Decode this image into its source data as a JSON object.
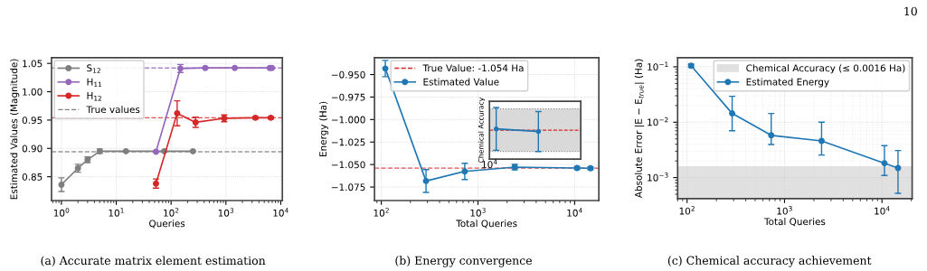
{
  "chart_data": [
    {
      "type": "line",
      "xlabel": "Queries",
      "ylabel": "Estimated Values (Magnitude)",
      "log": "x",
      "grid": true,
      "legend": "top left",
      "marker": "circle",
      "line_style": "solid",
      "xlim": [
        0.66,
        10700
      ],
      "ylim": [
        0.808,
        1.06
      ],
      "xticks": [
        {
          "value": 1,
          "label": "10$^{0}$"
        },
        {
          "value": 10,
          "label": "10$^{1}$"
        },
        {
          "value": 100,
          "label": "10$^{2}$"
        },
        {
          "value": 1000,
          "label": "10$^{3}$"
        },
        {
          "value": 10000,
          "label": "10$^{4}$"
        }
      ],
      "yticks": [
        {
          "value": 0.85,
          "label": "0.85"
        },
        {
          "value": 0.9,
          "label": "0.90"
        },
        {
          "value": 0.95,
          "label": "0.95"
        },
        {
          "value": 1.0,
          "label": "1.00"
        },
        {
          "value": 1.05,
          "label": "1.05"
        }
      ],
      "series": [
        {
          "name": "S$_{12}$",
          "color": "#7f7f7f",
          "x": [
            1,
            2,
            3,
            5,
            15,
            75,
            250
          ],
          "values": [
            0.836,
            0.865,
            0.88,
            0.895,
            0.895,
            0.895,
            0.895
          ],
          "errors": [
            0.012,
            0.007,
            0.005,
            0.004,
            0.001,
            null,
            null
          ]
        },
        {
          "name": "H$_{11}$",
          "color": "#9467bd",
          "x": [
            53,
            148,
            420,
            1450,
            6300,
            6900
          ],
          "values": [
            0.894,
            1.041,
            1.042,
            1.042,
            1.042,
            1.042
          ],
          "errors": [
            null,
            0.007,
            0.001,
            null,
            null,
            0.001
          ]
        },
        {
          "name": "H$_{12}$",
          "color": "#d62728",
          "x": [
            53,
            129,
            280,
            930,
            3450,
            6600
          ],
          "values": [
            0.838,
            0.962,
            0.946,
            0.953,
            0.954,
            0.954
          ],
          "errors": [
            0.008,
            0.022,
            0.009,
            0.006,
            0.002,
            0.002
          ]
        }
      ],
      "ref_lines": [
        {
          "axis": "y",
          "value": 0.894,
          "label": "True values",
          "color": "#7f7f7f",
          "line_style": "dashed"
        },
        {
          "axis": "y",
          "value": 1.042,
          "color": "#9467bd",
          "line_style": "dashed"
        },
        {
          "axis": "y",
          "value": 0.954,
          "color": "#d62728",
          "line_style": "dashed"
        }
      ],
      "annotations": [
        "(a) Accurate matrix element estimation"
      ]
    },
    {
      "type": "line",
      "xlabel": "Total Queries",
      "ylabel": "Energy (Ha)",
      "log": "x",
      "grid": true,
      "legend": "top left",
      "marker": "circle",
      "line_style": "solid",
      "xlim": [
        85,
        17800
      ],
      "ylim": [
        -1.09,
        -0.9313
      ],
      "xticks": [
        {
          "value": 100,
          "label": "10$^{2}$"
        },
        {
          "value": 1000,
          "label": "10$^{3}$"
        },
        {
          "value": 10000,
          "label": "10$^{4}$"
        }
      ],
      "yticks": [
        {
          "value": -1.075,
          "label": "−1.075"
        },
        {
          "value": -1.05,
          "label": "−1.050"
        },
        {
          "value": -1.025,
          "label": "−1.025"
        },
        {
          "value": -1.0,
          "label": "−1.000"
        },
        {
          "value": -0.975,
          "label": "−0.975"
        },
        {
          "value": -0.95,
          "label": "−0.950"
        }
      ],
      "series": [
        {
          "name": "Estimated Value",
          "color": "#1f77b4",
          "x": [
            110,
            290,
            730,
            2400,
            10600,
            14600
          ],
          "values": [
            -0.9433,
            -1.0683,
            -1.0576,
            -1.0529,
            -1.0539,
            -1.0541
          ],
          "errors": [
            0.009,
            0.0127,
            0.009,
            0.003,
            0.0016,
            0.0015
          ]
        }
      ],
      "ref_lines": [
        {
          "axis": "y",
          "value": -1.054,
          "label": "True Value: -1.054 Ha",
          "color": "#d62728",
          "line_style": "dashed"
        }
      ],
      "annotations": [
        "(b) Energy convergence"
      ]
    },
    {
      "type": "other",
      "annotations": [
        "Chemical Accuracy",
        "10$^{4}$"
      ]
    },
    {
      "type": "line",
      "xlabel": "Total Queries",
      "ylabel": "Absolute Error |E − E$_{true}$| (Ha)",
      "log": "xy",
      "grid": true,
      "legend": "top right",
      "marker": "circle",
      "line_style": "solid",
      "xlim": [
        80,
        20400
      ],
      "ylim": [
        0.000417,
        0.146
      ],
      "xticks": [
        {
          "value": 100,
          "label": "10$^{2}$"
        },
        {
          "value": 1000,
          "label": "10$^{3}$"
        },
        {
          "value": 10000,
          "label": "10$^{4}$"
        }
      ],
      "yticks": [
        {
          "value": 0.001,
          "label": "10$^{−3}$"
        },
        {
          "value": 0.01,
          "label": "10$^{−2}$"
        },
        {
          "value": 0.1,
          "label": "10$^{−1}$"
        }
      ],
      "series": [
        {
          "name": "Estimated Energy",
          "color": "#1f77b4",
          "x": [
            110,
            290,
            730,
            2400,
            10600,
            14600
          ],
          "values": [
            0.105,
            0.0144,
            0.0058,
            0.0046,
            0.00182,
            0.00149
          ],
          "errors": [
            [
              0.098,
              0.112
            ],
            [
              0.007,
              0.0293
            ],
            [
              0.00396,
              0.0144
            ],
            [
              0.00256,
              0.01
            ],
            [
              0.00109,
              0.00377
            ],
            [
              0.00052,
              0.00308
            ]
          ]
        }
      ],
      "bands": [
        {
          "axis": "y",
          "from": 0.000417,
          "to": 0.0016,
          "label": "Chemical Accuracy (≤ 0.0016 Ha)",
          "color": "#d9d9d9"
        }
      ],
      "annotations": [
        "(c) Chemical accuracy achievement",
        "10"
      ]
    }
  ]
}
